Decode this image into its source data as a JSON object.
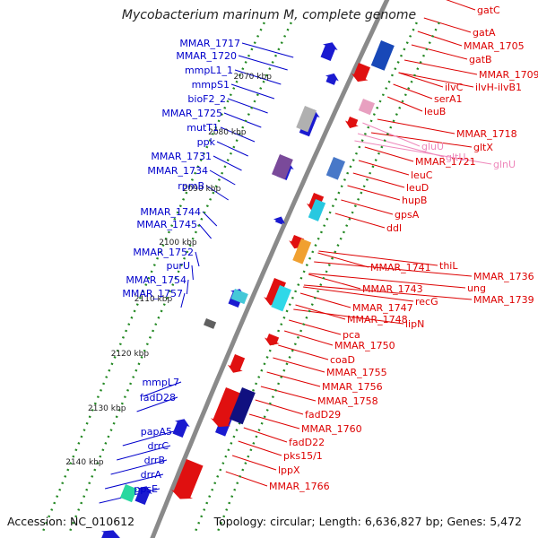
{
  "title": "Mycobacterium marinum M, complete genome",
  "footer": {
    "accession": "Accession: NC_010612",
    "summary": "Topology: circular; Length: 6,636,827 bp; Genes: 5,472"
  },
  "colors": {
    "left_labels": "#0000cc",
    "right_labels": "#dd0000",
    "pink_labels": "#ee88bb",
    "backbone": "#8a8a8a",
    "gc_dots": "#228822",
    "forward_genes": "#1a1ad0",
    "reverse_genes": "#e01010"
  },
  "kbp_ticks": [
    "2070 kbp",
    "2080 kbp",
    "2090 kbp",
    "2100 kbp",
    "2110 kbp",
    "2120 kbp",
    "2130 kbp",
    "2140 kbp"
  ],
  "left_genes": [
    "MMAR_1717",
    "MMAR_1720",
    "mmpL1_1",
    "mmpS1",
    "bioF2_2",
    "MMAR_1725",
    "mutT1",
    "ppk",
    "MMAR_1731",
    "MMAR_1734",
    "rpmB",
    "MMAR_1744",
    "MMAR_1745",
    "MMAR_1752",
    "purU",
    "MMAR_1754",
    "MMAR_1757",
    "mmpL7",
    "fadD28",
    "papA5",
    "drrC",
    "drrB",
    "drrA",
    "ppsE"
  ],
  "right_genes": [
    "gatC",
    "gatA",
    "MMAR_1705",
    "gatB",
    "MMAR_1709",
    "ilvC",
    "ilvH-ilvB1",
    "serA1",
    "leuB",
    "MMAR_1718",
    "gltX",
    "MMAR_1721",
    "leuC",
    "leuD",
    "hupB",
    "gpsA",
    "ddl",
    "thiL",
    "MMAR_1741",
    "MMAR_1736",
    "ung",
    "MMAR_1743",
    "MMAR_1739",
    "recG",
    "MMAR_1747",
    "MMAR_1748",
    "lipN",
    "pca",
    "MMAR_1750",
    "coaD",
    "MMAR_1755",
    "MMAR_1756",
    "MMAR_1758",
    "fadD29",
    "MMAR_1760",
    "fadD22",
    "pks15/1",
    "lppX",
    "MMAR_1766"
  ],
  "pink_genes": [
    "gluU",
    "gltU",
    "glnU"
  ]
}
